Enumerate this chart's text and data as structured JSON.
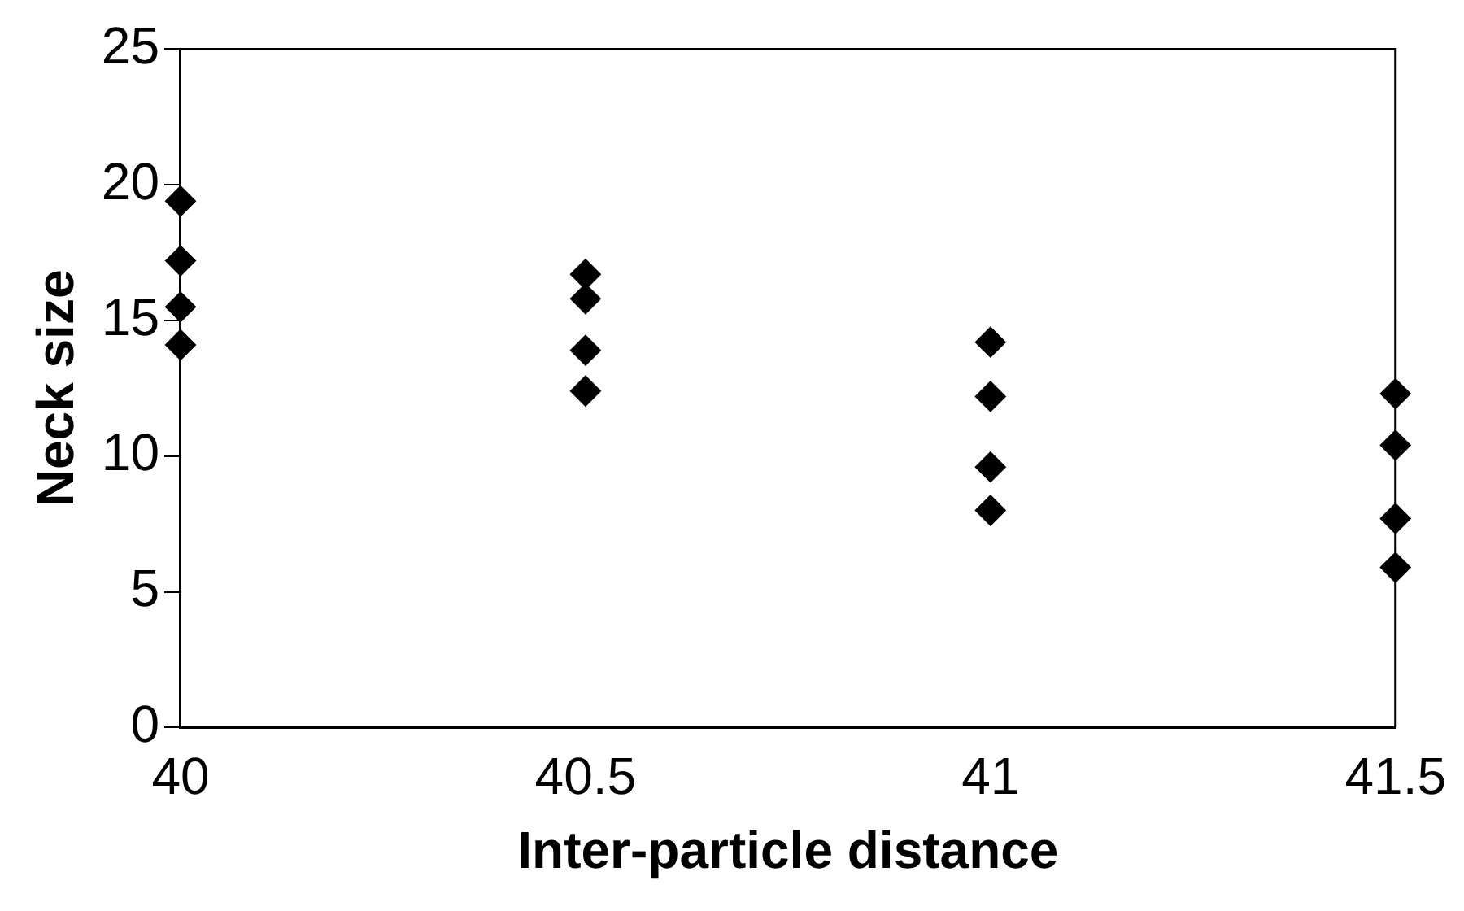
{
  "chart_data": {
    "type": "scatter",
    "xlabel": "Inter-particle distance",
    "ylabel": "Neck size",
    "x": [
      40,
      40,
      40,
      40,
      40.5,
      40.5,
      40.5,
      40.5,
      41,
      41,
      41,
      41,
      41.5,
      41.5,
      41.5,
      41.5
    ],
    "series": [
      {
        "color": "#000000",
        "values": [
          19.4,
          17.2,
          15.5,
          14.1,
          16.7,
          15.8,
          13.9,
          12.4,
          14.2,
          12.2,
          9.6,
          8.0,
          12.3,
          10.4,
          7.7,
          5.9
        ]
      }
    ],
    "xlim": [
      40,
      41.5
    ],
    "xticks": [
      40,
      40.5,
      41,
      41.5
    ],
    "ylim": [
      0,
      25
    ],
    "yticks": [
      0,
      5,
      10,
      15,
      20,
      25
    ],
    "marker": "diamond",
    "grid": false,
    "legend": false
  }
}
